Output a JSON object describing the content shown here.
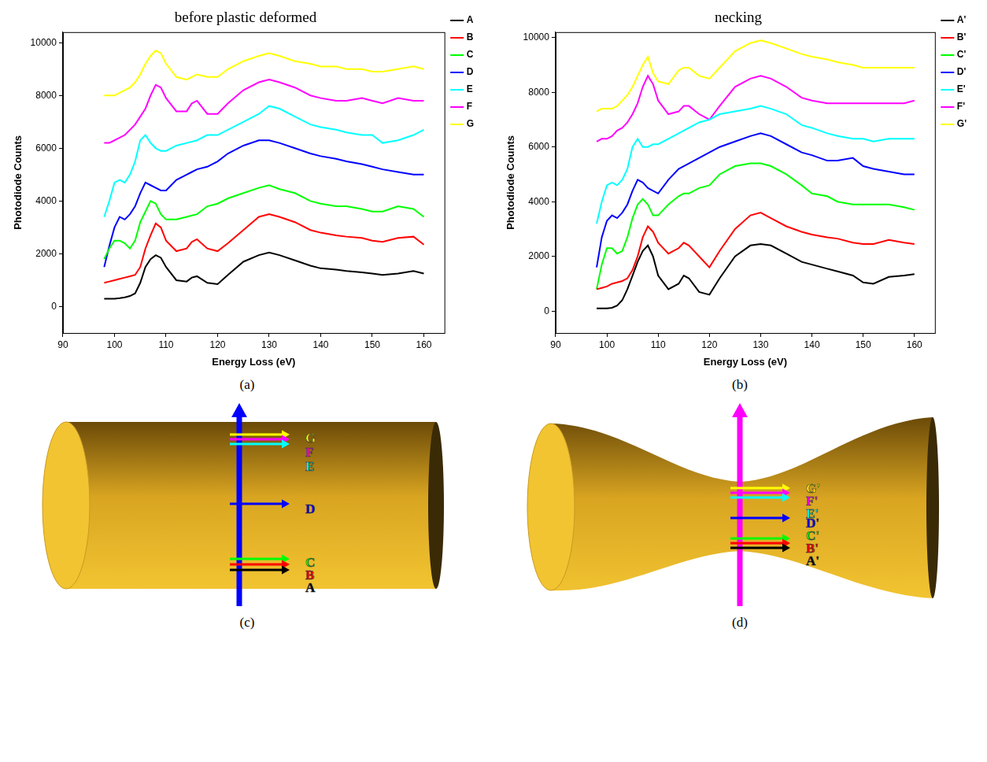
{
  "chart_data": [
    {
      "type": "line",
      "title": "before plastic deformed",
      "caption": "(a)",
      "x_label": "Energy Loss (eV)",
      "y_label": "Photodiode Counts",
      "xlim": [
        90,
        164
      ],
      "xticks": [
        90,
        100,
        110,
        120,
        130,
        140,
        150,
        160
      ],
      "ylim": [
        -1000,
        10400
      ],
      "yticks": [
        0,
        2000,
        4000,
        6000,
        8000,
        10000
      ],
      "grid": false,
      "legend": "right",
      "x": [
        98,
        99,
        100,
        101,
        102,
        103,
        104,
        105,
        106,
        107,
        108,
        109,
        110,
        112,
        114,
        115,
        116,
        118,
        120,
        122,
        125,
        128,
        130,
        132,
        135,
        138,
        140,
        143,
        145,
        148,
        150,
        152,
        155,
        158,
        160
      ],
      "series": [
        {
          "name": "A",
          "color": "#000000",
          "values": [
            300,
            300,
            300,
            320,
            350,
            400,
            500,
            900,
            1500,
            1800,
            1950,
            1850,
            1500,
            1000,
            950,
            1100,
            1150,
            900,
            850,
            1200,
            1700,
            1950,
            2050,
            1950,
            1750,
            1550,
            1450,
            1400,
            1350,
            1300,
            1250,
            1200,
            1250,
            1350,
            1250
          ]
        },
        {
          "name": "B",
          "color": "#ff0000",
          "values": [
            900,
            950,
            1000,
            1050,
            1100,
            1150,
            1200,
            1500,
            2200,
            2700,
            3150,
            3000,
            2500,
            2100,
            2200,
            2450,
            2550,
            2200,
            2100,
            2400,
            2900,
            3400,
            3500,
            3400,
            3200,
            2900,
            2800,
            2700,
            2650,
            2600,
            2500,
            2450,
            2600,
            2650,
            2350
          ]
        },
        {
          "name": "C",
          "color": "#00ff00",
          "values": [
            1800,
            2200,
            2500,
            2500,
            2400,
            2200,
            2500,
            3200,
            3600,
            4000,
            3900,
            3500,
            3300,
            3300,
            3400,
            3450,
            3500,
            3800,
            3900,
            4100,
            4300,
            4500,
            4600,
            4450,
            4300,
            4000,
            3900,
            3800,
            3800,
            3700,
            3600,
            3600,
            3800,
            3700,
            3400
          ]
        },
        {
          "name": "D",
          "color": "#0000ff",
          "values": [
            1500,
            2300,
            3000,
            3400,
            3300,
            3500,
            3800,
            4300,
            4700,
            4600,
            4500,
            4400,
            4400,
            4800,
            5000,
            5100,
            5200,
            5300,
            5500,
            5800,
            6100,
            6300,
            6300,
            6200,
            6000,
            5800,
            5700,
            5600,
            5500,
            5400,
            5300,
            5200,
            5100,
            5000,
            5000
          ]
        },
        {
          "name": "E",
          "color": "#00ffff",
          "values": [
            3400,
            4000,
            4700,
            4800,
            4700,
            5000,
            5500,
            6300,
            6500,
            6200,
            6000,
            5900,
            5900,
            6100,
            6200,
            6250,
            6300,
            6500,
            6500,
            6700,
            7000,
            7300,
            7600,
            7500,
            7200,
            6900,
            6800,
            6700,
            6600,
            6500,
            6500,
            6200,
            6300,
            6500,
            6700
          ]
        },
        {
          "name": "F",
          "color": "#ff00ff",
          "values": [
            6200,
            6200,
            6300,
            6400,
            6500,
            6700,
            6900,
            7200,
            7500,
            8000,
            8400,
            8300,
            7900,
            7400,
            7400,
            7700,
            7800,
            7300,
            7300,
            7700,
            8200,
            8500,
            8600,
            8500,
            8300,
            8000,
            7900,
            7800,
            7800,
            7900,
            7800,
            7700,
            7900,
            7800,
            7800
          ]
        },
        {
          "name": "G",
          "color": "#ffff00",
          "values": [
            8000,
            8000,
            8000,
            8100,
            8200,
            8300,
            8500,
            8800,
            9200,
            9500,
            9700,
            9600,
            9200,
            8700,
            8600,
            8700,
            8800,
            8700,
            8700,
            9000,
            9300,
            9500,
            9600,
            9500,
            9300,
            9200,
            9100,
            9100,
            9000,
            9000,
            8900,
            8900,
            9000,
            9100,
            9000
          ]
        }
      ]
    },
    {
      "type": "line",
      "title": "necking",
      "caption": "(b)",
      "x_label": "Energy Loss (eV)",
      "y_label": "Photodiode Counts",
      "xlim": [
        90,
        164
      ],
      "xticks": [
        90,
        100,
        110,
        120,
        130,
        140,
        150,
        160
      ],
      "ylim": [
        -800,
        10200
      ],
      "yticks": [
        0,
        2000,
        4000,
        6000,
        8000,
        10000
      ],
      "grid": false,
      "legend": "right",
      "x": [
        98,
        99,
        100,
        101,
        102,
        103,
        104,
        105,
        106,
        107,
        108,
        109,
        110,
        112,
        114,
        115,
        116,
        118,
        120,
        122,
        125,
        128,
        130,
        132,
        135,
        138,
        140,
        143,
        145,
        148,
        150,
        152,
        155,
        158,
        160
      ],
      "series": [
        {
          "name": "A'",
          "color": "#000000",
          "values": [
            100,
            100,
            100,
            120,
            200,
            400,
            800,
            1300,
            1800,
            2200,
            2400,
            2000,
            1300,
            800,
            1000,
            1300,
            1200,
            700,
            600,
            1200,
            2000,
            2400,
            2450,
            2400,
            2100,
            1800,
            1700,
            1550,
            1450,
            1300,
            1050,
            1000,
            1250,
            1300,
            1350
          ]
        },
        {
          "name": "B'",
          "color": "#ff0000",
          "values": [
            800,
            850,
            900,
            1000,
            1050,
            1100,
            1200,
            1500,
            2000,
            2700,
            3100,
            2900,
            2500,
            2100,
            2300,
            2500,
            2400,
            2000,
            1600,
            2200,
            3000,
            3500,
            3600,
            3400,
            3100,
            2900,
            2800,
            2700,
            2650,
            2500,
            2450,
            2450,
            2600,
            2500,
            2450
          ]
        },
        {
          "name": "C'",
          "color": "#00ff00",
          "values": [
            800,
            1700,
            2300,
            2300,
            2100,
            2200,
            2700,
            3400,
            3900,
            4100,
            3900,
            3500,
            3500,
            3900,
            4200,
            4300,
            4300,
            4500,
            4600,
            5000,
            5300,
            5400,
            5400,
            5300,
            5000,
            4600,
            4300,
            4200,
            4000,
            3900,
            3900,
            3900,
            3900,
            3800,
            3700
          ]
        },
        {
          "name": "D'",
          "color": "#0000ff",
          "values": [
            1600,
            2700,
            3300,
            3500,
            3400,
            3600,
            3900,
            4400,
            4800,
            4700,
            4500,
            4400,
            4300,
            4800,
            5200,
            5300,
            5400,
            5600,
            5800,
            6000,
            6200,
            6400,
            6500,
            6400,
            6100,
            5800,
            5700,
            5500,
            5500,
            5600,
            5300,
            5200,
            5100,
            5000,
            5000
          ]
        },
        {
          "name": "E'",
          "color": "#00ffff",
          "values": [
            3200,
            4000,
            4600,
            4700,
            4600,
            4800,
            5200,
            6000,
            6300,
            6000,
            6000,
            6100,
            6100,
            6300,
            6500,
            6600,
            6700,
            6900,
            7000,
            7200,
            7300,
            7400,
            7500,
            7400,
            7200,
            6800,
            6700,
            6500,
            6400,
            6300,
            6300,
            6200,
            6300,
            6300,
            6300
          ]
        },
        {
          "name": "F'",
          "color": "#ff00ff",
          "values": [
            6200,
            6300,
            6300,
            6400,
            6600,
            6700,
            6900,
            7200,
            7600,
            8200,
            8600,
            8300,
            7700,
            7200,
            7300,
            7500,
            7500,
            7200,
            7000,
            7500,
            8200,
            8500,
            8600,
            8500,
            8200,
            7800,
            7700,
            7600,
            7600,
            7600,
            7600,
            7600,
            7600,
            7600,
            7700
          ]
        },
        {
          "name": "G'",
          "color": "#ffff00",
          "values": [
            7300,
            7400,
            7400,
            7400,
            7500,
            7700,
            7900,
            8200,
            8600,
            9000,
            9300,
            8700,
            8400,
            8300,
            8800,
            8900,
            8900,
            8600,
            8500,
            8900,
            9500,
            9800,
            9900,
            9800,
            9600,
            9400,
            9300,
            9200,
            9100,
            9000,
            8900,
            8900,
            8900,
            8900,
            8900
          ]
        }
      ]
    }
  ],
  "diagrams": [
    {
      "caption": "(c)",
      "color": "#0000ff",
      "arrows": [
        {
          "label": "G",
          "color": "#ffff00"
        },
        {
          "label": "F",
          "color": "#ff00ff"
        },
        {
          "label": "E",
          "color": "#00ffff"
        },
        {
          "label": "D",
          "color": "#0000ff"
        },
        {
          "label": "C",
          "color": "#00ff00"
        },
        {
          "label": "B",
          "color": "#ff0000"
        },
        {
          "label": "A",
          "color": "#000000"
        }
      ]
    },
    {
      "caption": "(d)",
      "color": "#ff00ff",
      "arrows": [
        {
          "label": "G'",
          "color": "#ffff00"
        },
        {
          "label": "F'",
          "color": "#ff00ff"
        },
        {
          "label": "E'",
          "color": "#00ffff"
        },
        {
          "label": "D'",
          "color": "#0000ff"
        },
        {
          "label": "C'",
          "color": "#00ff00"
        },
        {
          "label": "B'",
          "color": "#ff0000"
        },
        {
          "label": "A'",
          "color": "#000000"
        }
      ]
    }
  ]
}
